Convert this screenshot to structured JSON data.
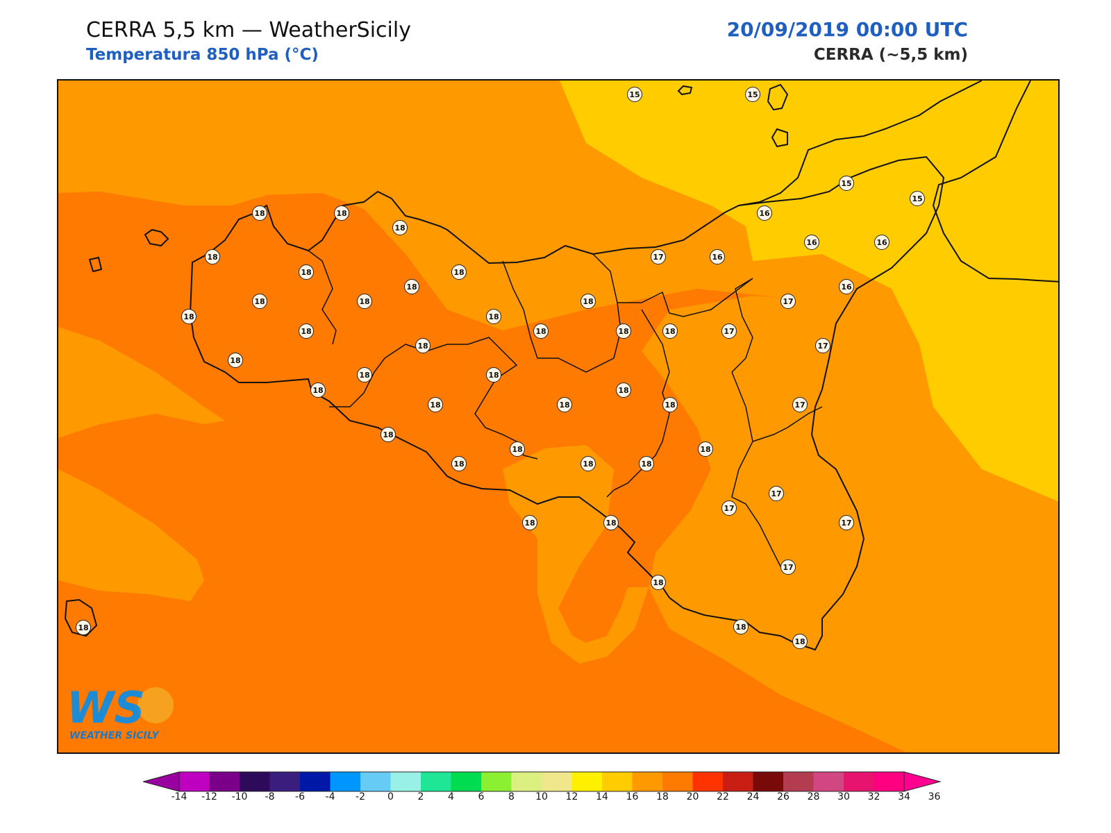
{
  "header": {
    "title": "CERRA 5,5 km — WeatherSicily",
    "subtitle": "Temperatura 850 hPa (°C)",
    "datetime": "20/09/2019 00:00 UTC",
    "model_label": "CERRA (~5,5 km)"
  },
  "colors": {
    "accent_blue": "#1f5fbf",
    "band_14_16": "#ffcc00",
    "band_16_18": "#ff9900",
    "band_18_20": "#ff7a00",
    "coast_line": "#111111"
  },
  "map": {
    "field": "Temperatura 850 hPa (°C)",
    "stations": [
      {
        "value": "15"
      },
      {
        "value": "15"
      },
      {
        "value": "15"
      },
      {
        "value": "15"
      },
      {
        "value": "16"
      },
      {
        "value": "16"
      },
      {
        "value": "16"
      },
      {
        "value": "16"
      },
      {
        "value": "16"
      },
      {
        "value": "17"
      },
      {
        "value": "17"
      },
      {
        "value": "17"
      },
      {
        "value": "17"
      },
      {
        "value": "17"
      },
      {
        "value": "17"
      },
      {
        "value": "17"
      },
      {
        "value": "17"
      },
      {
        "value": "17"
      },
      {
        "value": "18"
      },
      {
        "value": "18"
      },
      {
        "value": "18"
      },
      {
        "value": "18"
      },
      {
        "value": "18"
      },
      {
        "value": "18"
      },
      {
        "value": "18"
      },
      {
        "value": "18"
      },
      {
        "value": "18"
      },
      {
        "value": "18"
      },
      {
        "value": "18"
      },
      {
        "value": "18"
      },
      {
        "value": "18"
      },
      {
        "value": "18"
      },
      {
        "value": "18"
      },
      {
        "value": "18"
      },
      {
        "value": "18"
      },
      {
        "value": "18"
      },
      {
        "value": "18"
      },
      {
        "value": "18"
      },
      {
        "value": "18"
      },
      {
        "value": "18"
      },
      {
        "value": "18"
      },
      {
        "value": "18"
      },
      {
        "value": "18"
      },
      {
        "value": "18"
      },
      {
        "value": "18"
      },
      {
        "value": "18"
      },
      {
        "value": "18"
      },
      {
        "value": "18"
      },
      {
        "value": "18"
      },
      {
        "value": "18"
      },
      {
        "value": "18"
      },
      {
        "value": "18"
      },
      {
        "value": "18"
      },
      {
        "value": "18"
      }
    ]
  },
  "colorbar": {
    "ticks": [
      "-14",
      "-12",
      "-10",
      "-8",
      "-6",
      "-4",
      "-2",
      "0",
      "2",
      "4",
      "6",
      "8",
      "10",
      "12",
      "14",
      "16",
      "18",
      "20",
      "22",
      "24",
      "26",
      "28",
      "30",
      "32",
      "34",
      "36"
    ],
    "colors": [
      "#c000c0",
      "#7a008a",
      "#2e0a5a",
      "#3a1e7e",
      "#0018a8",
      "#0096ff",
      "#66ccf5",
      "#99f0e6",
      "#1ee696",
      "#00dc50",
      "#8cf032",
      "#dcf082",
      "#f0e68c",
      "#fff000",
      "#ffcc00",
      "#ff9900",
      "#ff7a00",
      "#ff3300",
      "#c81e14",
      "#780a0a",
      "#b43c50",
      "#d24682",
      "#e6146e",
      "#ff0080"
    ],
    "under_color": "#9a00a0",
    "over_color": "#ff0090"
  },
  "logo": {
    "text": "WEATHER SICILY",
    "mark": "WS"
  }
}
